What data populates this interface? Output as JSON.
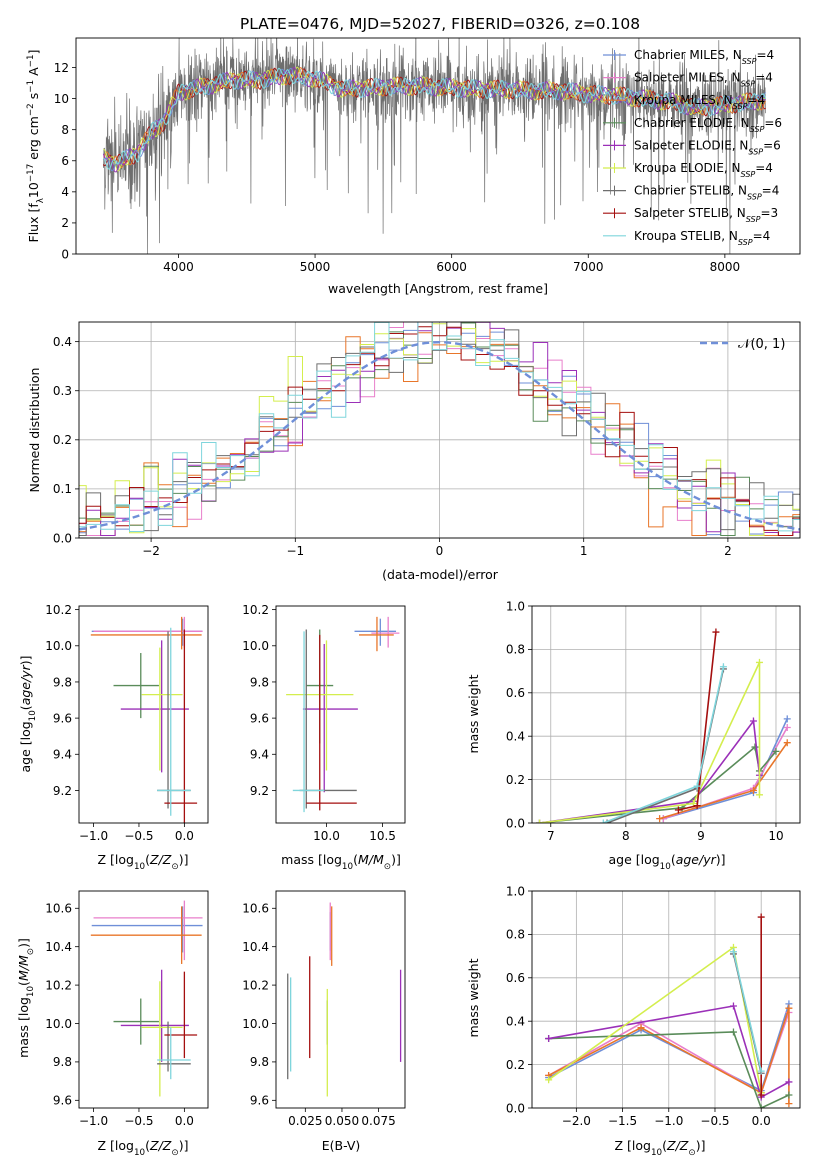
{
  "figure_title": "PLATE=0476, MJD=52027, FIBERID=0326, z=0.108",
  "colors": {
    "Chabrier MILES": "#6f8fd8",
    "Salpeter MILES": "#e87fcb",
    "Kroupa MILES": "#e8762a",
    "Chabrier ELODIE": "#5a8c5a",
    "Salpeter ELODIE": "#9b30b8",
    "Kroupa ELODIE": "#d4ee4e",
    "Chabrier STELIB": "#6e6e6e",
    "Salpeter STELIB": "#a40f0f",
    "Kroupa STELIB": "#7fd5dc",
    "normal_curve": "#6f8fd8",
    "grid": "#b0b0b0"
  },
  "chart_data": [
    {
      "id": "spectrum",
      "type": "line",
      "xlabel": "wavelength [Angstrom, rest frame]",
      "ylabel": "Flux [f_λ 10^-17 erg cm^-2 s^-1 A^-1]",
      "xlim": [
        3250,
        8550
      ],
      "ylim": [
        0,
        13.9
      ],
      "xticks": [
        4000,
        5000,
        6000,
        7000,
        8000
      ],
      "yticks": [
        0,
        2,
        4,
        6,
        8,
        10,
        12
      ],
      "grid": false,
      "legend_position": "right",
      "legend": [
        {
          "base": "Chabrier MILES, N",
          "sub": "SSP",
          "tail": "=4"
        },
        {
          "base": "Salpeter MILES, N",
          "sub": "SSP",
          "tail": "=4"
        },
        {
          "base": "Kroupa MILES, N",
          "sub": "SSP",
          "tail": "=4"
        },
        {
          "base": "Chabrier ELODIE, N",
          "sub": "SSP",
          "tail": "=6"
        },
        {
          "base": "Salpeter ELODIE, N",
          "sub": "SSP",
          "tail": "=6"
        },
        {
          "base": "Kroupa ELODIE, N",
          "sub": "SSP",
          "tail": "=4"
        },
        {
          "base": "Chabrier STELIB, N",
          "sub": "SSP",
          "tail": "=4"
        },
        {
          "base": "Salpeter STELIB, N",
          "sub": "SSP",
          "tail": "=3"
        },
        {
          "base": "Kroupa STELIB, N",
          "sub": "SSP",
          "tail": "=4"
        }
      ],
      "wavelength_range": [
        3450,
        8300
      ],
      "continuum_points": [
        [
          3450,
          6.2
        ],
        [
          3550,
          5.8
        ],
        [
          3700,
          6.5
        ],
        [
          3800,
          7.8
        ],
        [
          3900,
          8.6
        ],
        [
          4000,
          10.4
        ],
        [
          4200,
          10.8
        ],
        [
          4400,
          11.2
        ],
        [
          4600,
          11.2
        ],
        [
          4800,
          11.5
        ],
        [
          5000,
          11.3
        ],
        [
          5200,
          10.6
        ],
        [
          5400,
          10.7
        ],
        [
          5600,
          10.8
        ],
        [
          5800,
          10.8
        ],
        [
          6000,
          10.7
        ],
        [
          6200,
          10.6
        ],
        [
          6400,
          10.6
        ],
        [
          6600,
          10.5
        ],
        [
          6800,
          10.5
        ],
        [
          7000,
          10.3
        ],
        [
          7200,
          10.2
        ],
        [
          7400,
          10.0
        ],
        [
          7600,
          9.8
        ],
        [
          7800,
          9.4
        ],
        [
          8000,
          9.6
        ],
        [
          8200,
          9.8
        ],
        [
          8300,
          9.9
        ]
      ]
    },
    {
      "id": "residuals",
      "type": "histogram",
      "xlabel": "(data-model)/error",
      "ylabel": "Normed distribution",
      "xlim": [
        -2.5,
        2.5
      ],
      "ylim": [
        0,
        0.44
      ],
      "xticks": [
        -2,
        -1,
        0,
        1,
        2
      ],
      "yticks": [
        0.0,
        0.1,
        0.2,
        0.3,
        0.4
      ],
      "grid": true,
      "legend_label": "𝒩(0, 1)",
      "legend_position": "top-right",
      "bin_width": 0.1,
      "normal_curve": {
        "mean": 0,
        "sigma": 1
      }
    },
    {
      "id": "age-vs-Z",
      "type": "scatter",
      "xlabel": "Z [log10(Z/Z☉)]",
      "ylabel": "age  [log10(age/yr)]",
      "xlim": [
        -1.16,
        0.26
      ],
      "ylim": [
        9.02,
        10.22
      ],
      "xticks": [
        -1.0,
        -0.5,
        0.0
      ],
      "yticks": [
        9.2,
        9.4,
        9.6,
        9.8,
        10.0,
        10.2
      ],
      "grid": false,
      "points": [
        {
          "model": "Chabrier MILES",
          "x": -0.02,
          "y": 10.08,
          "xerr": [
            1.0,
            0.22
          ],
          "yerr": [
            0.08,
            0.07
          ]
        },
        {
          "model": "Salpeter MILES",
          "x": 0.0,
          "y": 10.08,
          "xerr": [
            1.0,
            0.2
          ],
          "yerr": [
            0.09,
            0.08
          ]
        },
        {
          "model": "Kroupa MILES",
          "x": -0.03,
          "y": 10.06,
          "xerr": [
            1.0,
            0.22
          ],
          "yerr": [
            0.08,
            0.1
          ]
        },
        {
          "model": "Chabrier ELODIE",
          "x": -0.48,
          "y": 9.78,
          "xerr": [
            0.3,
            0.2
          ],
          "yerr": [
            0.18,
            0.18
          ]
        },
        {
          "model": "Salpeter ELODIE",
          "x": -0.25,
          "y": 9.65,
          "xerr": [
            0.45,
            0.3
          ],
          "yerr": [
            0.35,
            0.38
          ]
        },
        {
          "model": "Kroupa ELODIE",
          "x": -0.27,
          "y": 9.73,
          "xerr": [
            0.2,
            0.25
          ],
          "yerr": [
            0.42,
            0.26
          ]
        },
        {
          "model": "Chabrier STELIB",
          "x": -0.18,
          "y": 9.2,
          "xerr": [
            0.12,
            0.25
          ],
          "yerr": [
            0.1,
            0.88
          ]
        },
        {
          "model": "Salpeter STELIB",
          "x": 0.0,
          "y": 9.13,
          "xerr": [
            0.22,
            0.14
          ],
          "yerr": [
            0.15,
            0.96
          ]
        },
        {
          "model": "Kroupa STELIB",
          "x": -0.15,
          "y": 9.2,
          "xerr": [
            0.15,
            0.22
          ],
          "yerr": [
            0.14,
            0.9
          ]
        }
      ]
    },
    {
      "id": "age-vs-mass",
      "type": "scatter",
      "xlabel": "mass [log10(M/M☉)]",
      "ylabel": "",
      "xlim": [
        9.55,
        10.7
      ],
      "ylim": [
        9.02,
        10.22
      ],
      "xticks": [
        10.0,
        10.5
      ],
      "yticks": [
        9.2,
        9.4,
        9.6,
        9.8,
        10.0,
        10.2
      ],
      "grid": false,
      "points": [
        {
          "model": "Chabrier MILES",
          "x": 10.48,
          "y": 10.08,
          "xerr": [
            0.23,
            0.14
          ],
          "yerr": [
            0.08,
            0.07
          ]
        },
        {
          "model": "Salpeter MILES",
          "x": 10.55,
          "y": 10.07,
          "xerr": [
            0.15,
            0.1
          ],
          "yerr": [
            0.08,
            0.09
          ]
        },
        {
          "model": "Kroupa MILES",
          "x": 10.45,
          "y": 10.06,
          "xerr": [
            0.16,
            0.15
          ],
          "yerr": [
            0.09,
            0.1
          ]
        },
        {
          "model": "Chabrier ELODIE",
          "x": 9.94,
          "y": 9.78,
          "xerr": [
            0.12,
            0.12
          ],
          "yerr": [
            0.32,
            0.31
          ]
        },
        {
          "model": "Salpeter ELODIE",
          "x": 9.98,
          "y": 9.65,
          "xerr": [
            0.19,
            0.3
          ],
          "yerr": [
            0.46,
            0.36
          ]
        },
        {
          "model": "Kroupa ELODIE",
          "x": 10.0,
          "y": 9.73,
          "xerr": [
            0.36,
            0.24
          ],
          "yerr": [
            0.42,
            0.3
          ]
        },
        {
          "model": "Chabrier STELIB",
          "x": 9.82,
          "y": 9.2,
          "xerr": [
            0.06,
            0.45
          ],
          "yerr": [
            0.1,
            0.89
          ]
        },
        {
          "model": "Salpeter STELIB",
          "x": 9.94,
          "y": 9.13,
          "xerr": [
            0.12,
            0.33
          ],
          "yerr": [
            0.04,
            0.93
          ]
        },
        {
          "model": "Kroupa STELIB",
          "x": 9.8,
          "y": 9.2,
          "xerr": [
            0.1,
            0.18
          ],
          "yerr": [
            0.12,
            0.88
          ]
        }
      ]
    },
    {
      "id": "massweight-vs-age",
      "type": "line",
      "xlabel": "age  [log10(age/yr)]",
      "ylabel": "mass weight",
      "xlim": [
        6.75,
        10.32
      ],
      "ylim": [
        0,
        1.0
      ],
      "xticks": [
        7,
        8,
        9,
        10
      ],
      "yticks": [
        0.0,
        0.2,
        0.4,
        0.6,
        0.8,
        1.0
      ],
      "grid": true,
      "series": [
        {
          "model": "Chabrier MILES",
          "x": [
            8.5,
            9.7,
            10.15
          ],
          "y": [
            0.02,
            0.14,
            0.48
          ]
        },
        {
          "model": "Salpeter MILES",
          "x": [
            8.5,
            9.7,
            10.15
          ],
          "y": [
            0.02,
            0.16,
            0.44
          ]
        },
        {
          "model": "Kroupa MILES",
          "x": [
            8.45,
            9.7,
            10.15
          ],
          "y": [
            0.02,
            0.15,
            0.37
          ]
        },
        {
          "model": "Chabrier ELODIE",
          "x": [
            6.85,
            8.75,
            9.72,
            9.78,
            10.0
          ],
          "y": [
            0.0,
            0.07,
            0.35,
            0.24,
            0.33
          ]
        },
        {
          "model": "Salpeter ELODIE",
          "x": [
            6.85,
            8.9,
            9.7,
            9.78
          ],
          "y": [
            0.0,
            0.1,
            0.47,
            0.22
          ]
        },
        {
          "model": "Kroupa ELODIE",
          "x": [
            6.85,
            8.9,
            9.78,
            9.78
          ],
          "y": [
            0.0,
            0.09,
            0.74,
            0.13
          ]
        },
        {
          "model": "Chabrier STELIB",
          "x": [
            7.75,
            8.95,
            9.3
          ],
          "y": [
            0.0,
            0.16,
            0.71
          ]
        },
        {
          "model": "Salpeter STELIB",
          "x": [
            8.7,
            8.95,
            9.2
          ],
          "y": [
            0.06,
            0.08,
            0.88
          ]
        },
        {
          "model": "Kroupa STELIB",
          "x": [
            7.7,
            8.95,
            9.3
          ],
          "y": [
            0.0,
            0.17,
            0.72
          ]
        }
      ]
    },
    {
      "id": "mass-vs-Z",
      "type": "scatter",
      "xlabel": "Z [log10(Z/Z☉)]",
      "ylabel": "mass [log10(M/M☉)]",
      "xlim": [
        -1.16,
        0.26
      ],
      "ylim": [
        9.56,
        10.69
      ],
      "xticks": [
        -1.0,
        -0.5,
        0.0
      ],
      "yticks": [
        9.6,
        9.8,
        10.0,
        10.2,
        10.4,
        10.6
      ],
      "grid": false,
      "points": [
        {
          "model": "Chabrier MILES",
          "x": -0.02,
          "y": 10.51,
          "xerr": [
            1.0,
            0.22
          ],
          "yerr": [
            0.14,
            0.1
          ]
        },
        {
          "model": "Salpeter MILES",
          "x": 0.0,
          "y": 10.55,
          "xerr": [
            1.0,
            0.2
          ],
          "yerr": [
            0.22,
            0.09
          ]
        },
        {
          "model": "Kroupa MILES",
          "x": -0.03,
          "y": 10.46,
          "xerr": [
            1.0,
            0.22
          ],
          "yerr": [
            0.15,
            0.15
          ]
        },
        {
          "model": "Chabrier ELODIE",
          "x": -0.48,
          "y": 10.01,
          "xerr": [
            0.3,
            0.2
          ],
          "yerr": [
            0.12,
            0.12
          ]
        },
        {
          "model": "Salpeter ELODIE",
          "x": -0.25,
          "y": 9.99,
          "xerr": [
            0.45,
            0.3
          ],
          "yerr": [
            0.19,
            0.29
          ]
        },
        {
          "model": "Kroupa ELODIE",
          "x": -0.27,
          "y": 9.98,
          "xerr": [
            0.2,
            0.25
          ],
          "yerr": [
            0.36,
            0.24
          ]
        },
        {
          "model": "Chabrier STELIB",
          "x": -0.18,
          "y": 9.79,
          "xerr": [
            0.12,
            0.25
          ],
          "yerr": [
            0.04,
            0.22
          ]
        },
        {
          "model": "Salpeter STELIB",
          "x": 0.0,
          "y": 9.94,
          "xerr": [
            0.22,
            0.14
          ],
          "yerr": [
            0.12,
            0.33
          ]
        },
        {
          "model": "Kroupa STELIB",
          "x": -0.15,
          "y": 9.81,
          "xerr": [
            0.15,
            0.22
          ],
          "yerr": [
            0.1,
            0.17
          ]
        }
      ]
    },
    {
      "id": "mass-vs-EBV",
      "type": "scatter",
      "xlabel": "E(B-V)",
      "ylabel": "",
      "xlim": [
        0.005,
        0.093
      ],
      "ylim": [
        9.56,
        10.69
      ],
      "xticks": [
        0.025,
        0.05,
        0.075
      ],
      "xtick_labels": [
        "0.025",
        "0.050",
        "0.075"
      ],
      "yticks": [
        9.6,
        9.8,
        10.0,
        10.2,
        10.4,
        10.6
      ],
      "grid": false,
      "points": [
        {
          "model": "Chabrier MILES",
          "x": 0.042,
          "y": 10.48,
          "yerr": [
            0.1,
            0.1
          ]
        },
        {
          "model": "Salpeter MILES",
          "x": 0.042,
          "y": 10.55,
          "yerr": [
            0.22,
            0.08
          ]
        },
        {
          "model": "Kroupa MILES",
          "x": 0.043,
          "y": 10.46,
          "yerr": [
            0.16,
            0.15
          ]
        },
        {
          "model": "Chabrier ELODIE",
          "x": 0.04,
          "y": 10.01,
          "yerr": [
            0.12,
            0.11
          ]
        },
        {
          "model": "Salpeter ELODIE",
          "x": 0.09,
          "y": 9.99,
          "yerr": [
            0.19,
            0.29
          ]
        },
        {
          "model": "Kroupa ELODIE",
          "x": 0.04,
          "y": 9.98,
          "yerr": [
            0.36,
            0.2
          ]
        },
        {
          "model": "Chabrier STELIB",
          "x": 0.013,
          "y": 9.98,
          "yerr": [
            0.27,
            0.28
          ]
        },
        {
          "model": "Salpeter STELIB",
          "x": 0.028,
          "y": 10.08,
          "yerr": [
            0.26,
            0.27
          ]
        },
        {
          "model": "Kroupa STELIB",
          "x": 0.015,
          "y": 10.0,
          "yerr": [
            0.25,
            0.24
          ]
        }
      ]
    },
    {
      "id": "massweight-vs-Z",
      "type": "line",
      "xlabel": "Z [log10(Z/Z☉)]",
      "ylabel": "mass weight",
      "xlim": [
        -2.48,
        0.42
      ],
      "ylim": [
        0,
        1.0
      ],
      "xticks": [
        -2.0,
        -1.5,
        -1.0,
        -0.5,
        0.0
      ],
      "yticks": [
        0.0,
        0.2,
        0.4,
        0.6,
        0.8,
        1.0
      ],
      "grid": true,
      "series": [
        {
          "model": "Chabrier MILES",
          "x": [
            -2.3,
            -1.3,
            0.0,
            0.3
          ],
          "y": [
            0.14,
            0.36,
            0.08,
            0.48
          ]
        },
        {
          "model": "Salpeter MILES",
          "x": [
            -2.3,
            -1.3,
            0.0,
            0.3
          ],
          "y": [
            0.15,
            0.39,
            0.07,
            0.44
          ]
        },
        {
          "model": "Kroupa MILES",
          "x": [
            -2.3,
            -1.3,
            0.0,
            0.3,
            0.3
          ],
          "y": [
            0.15,
            0.37,
            0.07,
            0.46,
            0.02
          ]
        },
        {
          "model": "Chabrier ELODIE",
          "x": [
            -2.3,
            -0.3,
            0.0,
            0.3
          ],
          "y": [
            0.32,
            0.35,
            0.0,
            0.06
          ]
        },
        {
          "model": "Salpeter ELODIE",
          "x": [
            -2.3,
            -0.3,
            0.0,
            0.3
          ],
          "y": [
            0.32,
            0.47,
            0.05,
            0.12
          ]
        },
        {
          "model": "Kroupa ELODIE",
          "x": [
            -2.3,
            -0.3,
            0.0
          ],
          "y": [
            0.13,
            0.74,
            0.07
          ]
        },
        {
          "model": "Chabrier STELIB",
          "x": [
            -0.3,
            0.0
          ],
          "y": [
            0.71,
            0.16
          ]
        },
        {
          "model": "Salpeter STELIB",
          "x": [
            0.0,
            0.0
          ],
          "y": [
            0.88,
            0.06
          ]
        },
        {
          "model": "Kroupa STELIB",
          "x": [
            -0.3,
            0.0
          ],
          "y": [
            0.72,
            0.17
          ]
        }
      ]
    }
  ]
}
